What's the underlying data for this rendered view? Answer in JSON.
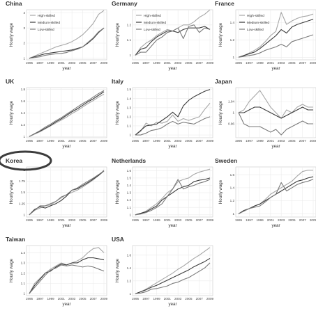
{
  "chart_data": [
    {
      "type": "line",
      "title": "China",
      "xlabel": "year",
      "ylabel": "Hourly wage",
      "ylim": [
        0.9,
        4.2
      ],
      "yticks": [
        1,
        2,
        3,
        4
      ],
      "xticks": [
        1995,
        1997,
        1999,
        2001,
        2003,
        2005,
        2007,
        2009
      ],
      "legend": {
        "position": "top-left",
        "entries": [
          "High-skilled",
          "Medium-skilled",
          "Low-skilled"
        ]
      },
      "x": [
        1995,
        1996,
        1997,
        1998,
        1999,
        2000,
        2001,
        2002,
        2003,
        2004,
        2005,
        2006,
        2007,
        2008,
        2009
      ],
      "series": [
        {
          "name": "High-skilled",
          "values": [
            1.0,
            1.15,
            1.3,
            1.45,
            1.6,
            1.75,
            1.85,
            1.95,
            2.1,
            2.3,
            2.55,
            2.9,
            3.3,
            3.9,
            4.15
          ]
        },
        {
          "name": "Medium-skilled",
          "values": [
            1.0,
            1.1,
            1.2,
            1.3,
            1.35,
            1.4,
            1.45,
            1.5,
            1.55,
            1.65,
            1.75,
            2.0,
            2.3,
            2.7,
            3.0
          ]
        },
        {
          "name": "Low-skilled",
          "values": [
            1.0,
            1.05,
            1.1,
            1.2,
            1.25,
            1.3,
            1.32,
            1.38,
            1.5,
            1.6,
            1.75,
            2.05,
            2.35,
            2.75,
            3.0
          ]
        }
      ]
    },
    {
      "type": "line",
      "title": "Germany",
      "xlabel": "year",
      "ylabel": "Hourly wage",
      "ylim": [
        0.97,
        1.3
      ],
      "yticks": [
        1.0,
        1.1,
        1.2
      ],
      "xticks": [
        1995,
        1997,
        1999,
        2001,
        2003,
        2005,
        2007,
        2009
      ],
      "legend": {
        "position": "top-left",
        "entries": [
          "High-skilled",
          "Medium-skilled",
          "Low-skilled"
        ]
      },
      "x": [
        1995,
        1996,
        1997,
        1998,
        1999,
        2000,
        2001,
        2002,
        2003,
        2004,
        2005,
        2006,
        2007,
        2008,
        2009
      ],
      "series": [
        {
          "name": "High-skilled",
          "values": [
            1.0,
            1.05,
            1.08,
            1.1,
            1.13,
            1.15,
            1.17,
            1.16,
            1.18,
            1.2,
            1.2,
            1.22,
            1.25,
            1.27,
            1.3
          ]
        },
        {
          "name": "Medium-skilled",
          "values": [
            1.0,
            1.04,
            1.05,
            1.09,
            1.12,
            1.14,
            1.16,
            1.16,
            1.15,
            1.17,
            1.18,
            1.18,
            1.18,
            1.19,
            1.17
          ]
        },
        {
          "name": "Low-skilled",
          "values": [
            1.0,
            1.02,
            1.02,
            1.06,
            1.1,
            1.12,
            1.15,
            1.16,
            1.18,
            1.11,
            1.19,
            1.2,
            1.15,
            1.18,
            1.17
          ]
        }
      ]
    },
    {
      "type": "line",
      "title": "France",
      "xlabel": "year",
      "ylabel": "Hourly wage",
      "ylim": [
        0.97,
        1.55
      ],
      "yticks": [
        1.0,
        1.2,
        1.4
      ],
      "xticks": [
        1995,
        1997,
        1999,
        2001,
        2003,
        2005,
        2007,
        2009
      ],
      "legend": {
        "position": "top-left",
        "entries": [
          "High-skilled",
          "Medium-skilled",
          "Low-skilled"
        ]
      },
      "x": [
        1995,
        1996,
        1997,
        1998,
        1999,
        2000,
        2001,
        2002,
        2003,
        2004,
        2005,
        2006,
        2007,
        2008,
        2009
      ],
      "series": [
        {
          "name": "High-skilled",
          "values": [
            1.0,
            1.02,
            1.05,
            1.08,
            1.12,
            1.18,
            1.25,
            1.3,
            1.52,
            1.38,
            1.42,
            1.45,
            1.47,
            1.48,
            1.5
          ]
        },
        {
          "name": "Medium-skilled",
          "values": [
            1.0,
            1.02,
            1.04,
            1.06,
            1.1,
            1.15,
            1.2,
            1.25,
            1.32,
            1.28,
            1.35,
            1.38,
            1.4,
            1.42,
            1.44
          ]
        },
        {
          "name": "Low-skilled",
          "values": [
            1.0,
            1.01,
            1.02,
            1.03,
            1.05,
            1.08,
            1.1,
            1.12,
            1.15,
            1.12,
            1.18,
            1.2,
            1.22,
            1.24,
            1.26
          ]
        }
      ]
    },
    {
      "type": "line",
      "title": "UK",
      "xlabel": "year",
      "ylabel": "Hourly wage",
      "ylim": [
        0.98,
        1.83
      ],
      "yticks": [
        1.0,
        1.2,
        1.4,
        1.6,
        1.8
      ],
      "xticks": [
        1995,
        1997,
        1999,
        2001,
        2003,
        2005,
        2007,
        2009
      ],
      "x": [
        1995,
        1996,
        1997,
        1998,
        1999,
        2000,
        2001,
        2002,
        2003,
        2004,
        2005,
        2006,
        2007,
        2008,
        2009
      ],
      "series": [
        {
          "name": "High-skilled",
          "values": [
            1.0,
            1.04,
            1.08,
            1.13,
            1.18,
            1.23,
            1.28,
            1.33,
            1.39,
            1.44,
            1.5,
            1.56,
            1.61,
            1.67,
            1.72
          ]
        },
        {
          "name": "Medium-skilled",
          "values": [
            1.0,
            1.05,
            1.09,
            1.14,
            1.19,
            1.25,
            1.3,
            1.36,
            1.42,
            1.47,
            1.53,
            1.59,
            1.64,
            1.7,
            1.76
          ]
        },
        {
          "name": "Low-skilled",
          "values": [
            1.0,
            1.05,
            1.1,
            1.16,
            1.21,
            1.27,
            1.32,
            1.38,
            1.44,
            1.5,
            1.56,
            1.61,
            1.67,
            1.73,
            1.78
          ]
        }
      ]
    },
    {
      "type": "line",
      "title": "Italy",
      "xlabel": "year",
      "ylabel": "Hourly wage",
      "ylim": [
        0.97,
        1.52
      ],
      "yticks": [
        1.0,
        1.1,
        1.2,
        1.3,
        1.4,
        1.5
      ],
      "xticks": [
        1995,
        1997,
        1999,
        2001,
        2003,
        2005,
        2007,
        2009
      ],
      "x": [
        1995,
        1996,
        1997,
        1998,
        1999,
        2000,
        2001,
        2002,
        2003,
        2004,
        2005,
        2006,
        2007,
        2008,
        2009
      ],
      "series": [
        {
          "name": "High-skilled",
          "values": [
            1.0,
            1.04,
            1.13,
            1.1,
            1.14,
            1.13,
            1.15,
            1.22,
            1.15,
            1.18,
            1.16,
            1.18,
            1.2,
            1.28,
            1.35
          ]
        },
        {
          "name": "Medium-skilled",
          "values": [
            1.0,
            1.05,
            1.1,
            1.11,
            1.12,
            1.16,
            1.2,
            1.25,
            1.2,
            1.32,
            1.38,
            1.42,
            1.45,
            1.48,
            1.5
          ]
        },
        {
          "name": "Low-skilled",
          "values": [
            1.0,
            1.0,
            1.02,
            1.05,
            1.06,
            1.08,
            1.12,
            1.15,
            1.12,
            1.14,
            1.13,
            1.12,
            1.15,
            1.18,
            1.2
          ]
        }
      ]
    },
    {
      "type": "line",
      "title": "Japan",
      "xlabel": "year",
      "ylabel": "Hourly wage",
      "ylim": [
        0.91,
        1.09
      ],
      "yticks": [
        0.96,
        1.0,
        1.04
      ],
      "xticks": [
        1995,
        1997,
        1999,
        2001,
        2003,
        2005,
        2007,
        2009
      ],
      "x": [
        1995,
        1996,
        1997,
        1998,
        1999,
        2000,
        2001,
        2002,
        2003,
        2004,
        2005,
        2006,
        2007,
        2008,
        2009
      ],
      "series": [
        {
          "name": "High-skilled",
          "values": [
            1.0,
            1.01,
            1.04,
            1.06,
            1.08,
            1.05,
            1.02,
            1.0,
            0.98,
            1.01,
            1.0,
            1.02,
            1.03,
            1.02,
            1.02
          ]
        },
        {
          "name": "Medium-skilled",
          "values": [
            1.0,
            1.0,
            1.01,
            1.02,
            1.02,
            1.01,
            1.0,
            0.99,
            0.98,
            0.99,
            1.0,
            1.01,
            1.02,
            1.01,
            1.01
          ]
        },
        {
          "name": "Low-skilled",
          "values": [
            1.0,
            0.96,
            0.95,
            0.95,
            0.95,
            0.94,
            0.93,
            0.94,
            0.92,
            0.94,
            0.95,
            0.96,
            0.97,
            0.96,
            0.96
          ]
        }
      ]
    },
    {
      "type": "line",
      "title": "Korea",
      "xlabel": "year",
      "ylabel": "Hourly wage",
      "ylim": [
        0.95,
        2.07
      ],
      "yticks": [
        1.0,
        1.25,
        1.5,
        1.75,
        2.0
      ],
      "xticks": [
        1995,
        1997,
        1999,
        2001,
        2003,
        2005,
        2007,
        2009
      ],
      "x": [
        1995,
        1996,
        1997,
        1998,
        1999,
        2000,
        2001,
        2002,
        2003,
        2004,
        2005,
        2006,
        2007,
        2008,
        2009
      ],
      "series": [
        {
          "name": "High-skilled",
          "values": [
            1.0,
            1.1,
            1.15,
            1.2,
            1.22,
            1.3,
            1.38,
            1.45,
            1.5,
            1.55,
            1.62,
            1.7,
            1.78,
            1.88,
            2.0
          ]
        },
        {
          "name": "Medium-skilled",
          "values": [
            1.0,
            1.12,
            1.18,
            1.15,
            1.2,
            1.25,
            1.32,
            1.42,
            1.55,
            1.58,
            1.65,
            1.72,
            1.8,
            1.88,
            1.98
          ]
        },
        {
          "name": "Low-skilled",
          "values": [
            1.0,
            1.1,
            1.2,
            1.2,
            1.25,
            1.3,
            1.4,
            1.45,
            1.55,
            1.6,
            1.68,
            1.75,
            1.82,
            1.9,
            1.98
          ]
        }
      ]
    },
    {
      "type": "line",
      "title": "Netherlands",
      "xlabel": "year",
      "ylabel": "Hourly wage",
      "ylim": [
        0.97,
        1.65
      ],
      "yticks": [
        1.0,
        1.1,
        1.2,
        1.3,
        1.4,
        1.5,
        1.6
      ],
      "xticks": [
        1995,
        1997,
        1999,
        2001,
        2003,
        2005,
        2007,
        2009
      ],
      "x": [
        1995,
        1996,
        1997,
        1998,
        1999,
        2000,
        2001,
        2002,
        2003,
        2004,
        2005,
        2006,
        2007,
        2008,
        2009
      ],
      "series": [
        {
          "name": "High-skilled",
          "values": [
            1.0,
            1.02,
            1.05,
            1.1,
            1.15,
            1.22,
            1.3,
            1.35,
            1.45,
            1.48,
            1.5,
            1.55,
            1.58,
            1.6,
            1.62
          ]
        },
        {
          "name": "Medium-skilled",
          "values": [
            1.0,
            1.02,
            1.04,
            1.08,
            1.12,
            1.2,
            1.25,
            1.3,
            1.35,
            1.38,
            1.4,
            1.45,
            1.47,
            1.48,
            1.5
          ]
        },
        {
          "name": "Low-skilled",
          "values": [
            1.0,
            1.01,
            1.03,
            1.06,
            1.1,
            1.15,
            1.25,
            1.35,
            1.48,
            1.35,
            1.38,
            1.4,
            1.43,
            1.45,
            1.48
          ]
        }
      ]
    },
    {
      "type": "line",
      "title": "Sweden",
      "xlabel": "year",
      "ylabel": "Hourly wage",
      "ylim": [
        0.95,
        1.72
      ],
      "yticks": [
        1.0,
        1.2,
        1.4,
        1.6
      ],
      "xticks": [
        1995,
        1997,
        1999,
        2001,
        2003,
        2005,
        2007,
        2009
      ],
      "x": [
        1995,
        1996,
        1997,
        1998,
        1999,
        2000,
        2001,
        2002,
        2003,
        2004,
        2005,
        2006,
        2007,
        2008,
        2009
      ],
      "series": [
        {
          "name": "High-skilled",
          "values": [
            1.0,
            1.05,
            1.08,
            1.12,
            1.15,
            1.22,
            1.3,
            1.35,
            1.4,
            1.45,
            1.5,
            1.58,
            1.65,
            1.67,
            1.67
          ]
        },
        {
          "name": "Medium-skilled",
          "values": [
            1.0,
            1.05,
            1.08,
            1.12,
            1.15,
            1.2,
            1.25,
            1.3,
            1.35,
            1.4,
            1.45,
            1.5,
            1.52,
            1.55,
            1.57
          ]
        },
        {
          "name": "Low-skilled",
          "values": [
            1.0,
            1.04,
            1.08,
            1.1,
            1.12,
            1.18,
            1.25,
            1.3,
            1.48,
            1.35,
            1.4,
            1.45,
            1.48,
            1.5,
            1.53
          ]
        }
      ]
    },
    {
      "type": "line",
      "title": "Taiwan",
      "xlabel": "year",
      "ylabel": "Hourly wage",
      "ylim": [
        0.98,
        1.47
      ],
      "yticks": [
        1.0,
        1.1,
        1.2,
        1.3,
        1.4
      ],
      "xticks": [
        1995,
        1997,
        1999,
        2001,
        2003,
        2005,
        2007,
        2009
      ],
      "x": [
        1995,
        1996,
        1997,
        1998,
        1999,
        2000,
        2001,
        2002,
        2003,
        2004,
        2005,
        2006,
        2007,
        2008,
        2009
      ],
      "series": [
        {
          "name": "High-skilled",
          "values": [
            1.0,
            1.1,
            1.15,
            1.2,
            1.24,
            1.27,
            1.3,
            1.28,
            1.3,
            1.32,
            1.35,
            1.4,
            1.44,
            1.45,
            1.4
          ]
        },
        {
          "name": "Medium-skilled",
          "values": [
            1.0,
            1.08,
            1.14,
            1.2,
            1.22,
            1.26,
            1.29,
            1.28,
            1.3,
            1.3,
            1.33,
            1.35,
            1.35,
            1.34,
            1.33
          ]
        },
        {
          "name": "Low-skilled",
          "values": [
            1.0,
            1.06,
            1.12,
            1.18,
            1.23,
            1.25,
            1.28,
            1.27,
            1.28,
            1.27,
            1.26,
            1.27,
            1.26,
            1.24,
            1.22
          ]
        }
      ]
    },
    {
      "type": "line",
      "title": "USA",
      "xlabel": "year",
      "ylabel": "Hourly wage",
      "ylim": [
        0.97,
        1.75
      ],
      "yticks": [
        1.0,
        1.2,
        1.4,
        1.6
      ],
      "xticks": [
        1995,
        1997,
        1999,
        2001,
        2003,
        2005,
        2007,
        2009
      ],
      "x": [
        1995,
        1996,
        1997,
        1998,
        1999,
        2000,
        2001,
        2002,
        2003,
        2004,
        2005,
        2006,
        2007,
        2008,
        2009
      ],
      "series": [
        {
          "name": "High-skilled",
          "values": [
            1.0,
            1.03,
            1.07,
            1.12,
            1.17,
            1.22,
            1.27,
            1.32,
            1.38,
            1.43,
            1.49,
            1.55,
            1.6,
            1.66,
            1.72
          ]
        },
        {
          "name": "Medium-skilled",
          "values": [
            1.0,
            1.03,
            1.06,
            1.1,
            1.13,
            1.17,
            1.21,
            1.25,
            1.29,
            1.33,
            1.37,
            1.42,
            1.46,
            1.5,
            1.55
          ]
        },
        {
          "name": "Low-skilled",
          "values": [
            1.0,
            1.01,
            1.03,
            1.07,
            1.08,
            1.1,
            1.12,
            1.16,
            1.18,
            1.22,
            1.25,
            1.3,
            1.35,
            1.4,
            1.48
          ]
        }
      ]
    }
  ],
  "colors": {
    "High-skilled": "#a6a6a6",
    "Medium-skilled": "#3a3a3a",
    "Low-skilled": "#7a7a7a",
    "grid": "#ebebeb",
    "frame": "#c8c8c8",
    "highlight": "#3c3c3c"
  },
  "annotation": {
    "shape": "ellipse",
    "target": "Korea"
  }
}
